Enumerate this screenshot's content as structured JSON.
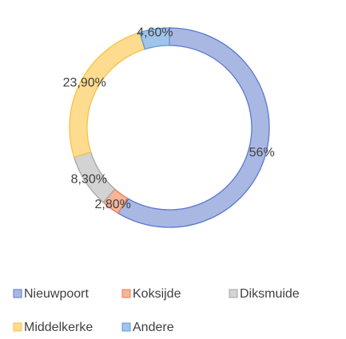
{
  "chart_data": {
    "type": "donut",
    "categories": [
      "Nieuwpoort",
      "Koksijde",
      "Diksmuide",
      "Middelkerke",
      "Andere"
    ],
    "values": [
      56,
      2.8,
      8.3,
      23.9,
      4.6
    ],
    "value_labels": [
      "56%",
      "2,80%",
      "8,30%",
      "23,90%",
      "4,60%"
    ],
    "colors": [
      "#a9b8e3",
      "#f6b59b",
      "#d3d3d3",
      "#fddb8f",
      "#a0c4ea"
    ],
    "edge_colors": [
      "#5b78cf",
      "#ec7c52",
      "#a5a5a5",
      "#f7c343",
      "#5b9bd5"
    ]
  }
}
